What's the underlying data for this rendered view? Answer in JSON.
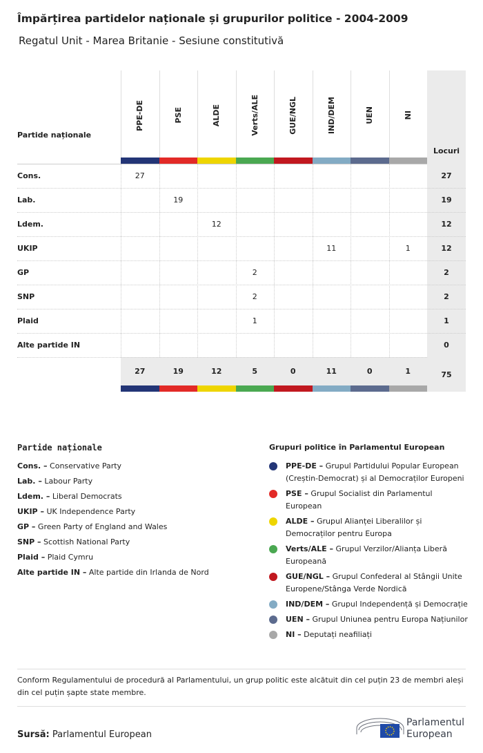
{
  "header": {
    "title": "Împărțirea partidelor naționale și grupurilor politice - 2004-2009",
    "subtitle": "Regatul Unit - Marea Britanie - Sesiune constitutivă"
  },
  "table": {
    "corner": "Partide naționale",
    "total_header": "Locuri",
    "columns": [
      {
        "name": "PPE-DE",
        "color": "#233576"
      },
      {
        "name": "PSE",
        "color": "#e22a27"
      },
      {
        "name": "ALDE",
        "color": "#eed500"
      },
      {
        "name": "Verts/ALE",
        "color": "#4aa851"
      },
      {
        "name": "GUE/NGL",
        "color": "#c1181f"
      },
      {
        "name": "IND/DEM",
        "color": "#83abc4"
      },
      {
        "name": "UEN",
        "color": "#5c6b8e"
      },
      {
        "name": "NI",
        "color": "#a8a8a8"
      }
    ],
    "rows": [
      {
        "party": "Cons.",
        "cells": [
          27,
          null,
          null,
          null,
          null,
          null,
          null,
          null
        ],
        "total": 27
      },
      {
        "party": "Lab.",
        "cells": [
          null,
          19,
          null,
          null,
          null,
          null,
          null,
          null
        ],
        "total": 19
      },
      {
        "party": "Ldem.",
        "cells": [
          null,
          null,
          12,
          null,
          null,
          null,
          null,
          null
        ],
        "total": 12
      },
      {
        "party": "UKIP",
        "cells": [
          null,
          null,
          null,
          null,
          null,
          11,
          null,
          1
        ],
        "total": 12
      },
      {
        "party": "GP",
        "cells": [
          null,
          null,
          null,
          2,
          null,
          null,
          null,
          null
        ],
        "total": 2
      },
      {
        "party": "SNP",
        "cells": [
          null,
          null,
          null,
          2,
          null,
          null,
          null,
          null
        ],
        "total": 2
      },
      {
        "party": "Plaid",
        "cells": [
          null,
          null,
          null,
          1,
          null,
          null,
          null,
          null
        ],
        "total": 1
      },
      {
        "party": "Alte partide IN",
        "cells": [
          null,
          null,
          null,
          null,
          null,
          null,
          null,
          null
        ],
        "total": 0
      }
    ],
    "totals": [
      27,
      19,
      12,
      5,
      0,
      11,
      0,
      1
    ],
    "grand_total": 75
  },
  "legend_parties": {
    "title": "Partide naționale",
    "items": [
      {
        "abbr": "Cons. –",
        "name": "Conservative Party"
      },
      {
        "abbr": "Lab. –",
        "name": "Labour Party"
      },
      {
        "abbr": "Ldem. –",
        "name": "Liberal Democrats"
      },
      {
        "abbr": "UKIP –",
        "name": "UK Independence Party"
      },
      {
        "abbr": "GP –",
        "name": "Green Party of England and Wales"
      },
      {
        "abbr": "SNP –",
        "name": "Scottish National Party"
      },
      {
        "abbr": "Plaid –",
        "name": "Plaid Cymru"
      },
      {
        "abbr": "Alte partide IN –",
        "name": "Alte partide din Irlanda de Nord"
      }
    ]
  },
  "legend_groups": {
    "title": "Grupuri politice în Parlamentul European",
    "items": [
      {
        "abbr": "PPE-DE –",
        "name": "Grupul Partidului Popular European (Creștin-Democrat) și al Democraților Europeni",
        "color": "#233576"
      },
      {
        "abbr": "PSE –",
        "name": "Grupul Socialist din Parlamentul European",
        "color": "#e22a27"
      },
      {
        "abbr": "ALDE –",
        "name": "Grupul Alianței Liberalilor și Democraților pentru Europa",
        "color": "#eed500"
      },
      {
        "abbr": "Verts/ALE –",
        "name": "Grupul Verzilor/Alianța Liberă Europeană",
        "color": "#4aa851"
      },
      {
        "abbr": "GUE/NGL –",
        "name": "Grupul Confederal al Stângii Unite Europene/Stânga Verde Nordică",
        "color": "#c1181f"
      },
      {
        "abbr": "IND/DEM –",
        "name": "Grupul Independență și Democrație",
        "color": "#83abc4"
      },
      {
        "abbr": "UEN –",
        "name": "Grupul Uniunea pentru Europa Națiunilor",
        "color": "#5c6b8e"
      },
      {
        "abbr": "NI –",
        "name": "Deputați neafiliați",
        "color": "#a8a8a8"
      }
    ]
  },
  "note": "Conform Regulamentului de procedură al Parlamentului, un grup politic este alcătuit din cel puțin 23 de membri aleși din cel puțin șapte state membre.",
  "source": {
    "label": "Sursă:",
    "text": "Parlamentul European"
  },
  "logo": {
    "line1": "Parlamentul",
    "line2": "European"
  }
}
